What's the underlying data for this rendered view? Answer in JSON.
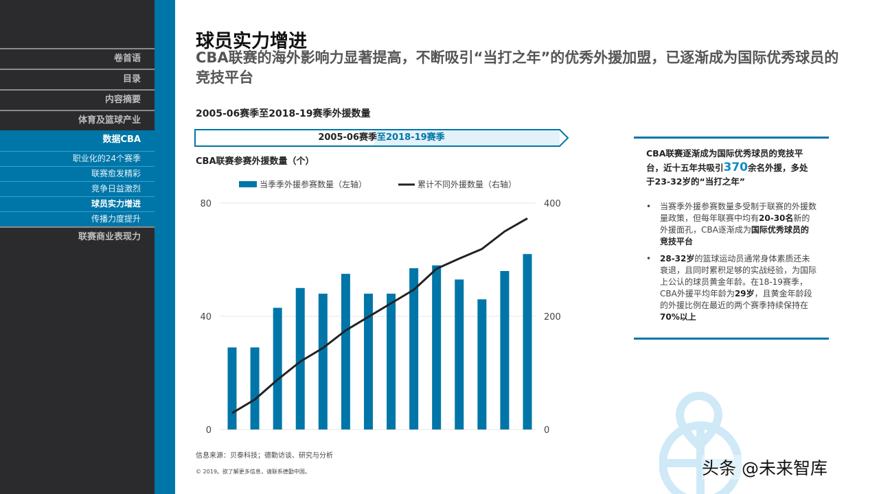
{
  "sidebar": {
    "items": [
      {
        "label": "卷首语",
        "type": "main"
      },
      {
        "label": "目录",
        "type": "main"
      },
      {
        "label": "内容摘要",
        "type": "main"
      },
      {
        "label": "体育及篮球产业",
        "type": "main"
      },
      {
        "label": "数据CBA",
        "type": "active"
      },
      {
        "label": "职业化的24个赛季",
        "type": "sub"
      },
      {
        "label": "联赛愈发精彩",
        "type": "sub"
      },
      {
        "label": "竞争日益激烈",
        "type": "sub"
      },
      {
        "label": "球员实力增进",
        "type": "sub",
        "current": true
      },
      {
        "label": "传播力度提升",
        "type": "sub"
      },
      {
        "label": "联赛商业表现力",
        "type": "main"
      }
    ]
  },
  "header": {
    "title": "球员实力增进",
    "subtitle": "CBA联赛的海外影响力显著提高，不断吸引“当打之年”的优秀外援加盟，已逐渐成为国际优秀球员的竞技平台"
  },
  "banner": {
    "start": "2005-06赛季",
    "end": "至2018-19赛季"
  },
  "colors": {
    "accent": "#0076a8",
    "sidebar": "#2b2b2d",
    "line": "#222222"
  },
  "chart_data": {
    "type": "bar+line",
    "title": "2005-06赛季至2018-19赛季外援数量",
    "ylabel": "CBA联赛参赛外援数量（个）",
    "ylim": [
      0,
      80
    ],
    "y2lim": [
      0,
      400
    ],
    "yticks": [
      "0",
      "40",
      "80"
    ],
    "y2ticks": [
      "0",
      "200",
      "400"
    ],
    "legend_position": "top",
    "grid": true,
    "series": [
      {
        "name": "当季季外援参赛数量（左轴）",
        "type": "bar",
        "axis": "left",
        "values": [
          29,
          29,
          43,
          50,
          48,
          55,
          48,
          48,
          57,
          58,
          53,
          46,
          56,
          62
        ]
      },
      {
        "name": "累计不同外援数量（右轴）",
        "type": "line",
        "axis": "right",
        "values": [
          29,
          53,
          88,
          120,
          144,
          175,
          199,
          223,
          247,
          284,
          302,
          319,
          350,
          373
        ]
      }
    ]
  },
  "panel": {
    "head_a": "CBA联赛逐渐成为国际优秀球员的竞技平台，近十五年共吸引",
    "head_num": "370",
    "head_b": "余名外援，多处于23-32岁的“当打之年”",
    "b1": [
      {
        "t": "当赛季外援参赛数量多受制于联赛的外援数量政策，但每年联赛中均有"
      },
      {
        "t": "20-30名",
        "b": true
      },
      {
        "t": "新的外援面孔，CBA逐渐成为"
      },
      {
        "t": "国际优秀球员的竞技平台",
        "b": true
      }
    ],
    "b2": [
      {
        "t": "28-32岁",
        "b": true
      },
      {
        "t": "的篮球运动员通常身体素质还未衰退，且同时累积足够的实战经验，为国际上公认的球员黄金年龄。在18-19赛季，CBA外援平均年龄为"
      },
      {
        "t": "29岁",
        "b": true
      },
      {
        "t": "，且黄金年龄段的外援比例在最近的两个赛季持续保持在"
      },
      {
        "t": "70%以上",
        "b": true
      }
    ]
  },
  "footer": {
    "source": "信息来源：贝泰科技；德勤访谈、研究与分析",
    "copyright": "© 2019。欲了解更多信息，请联系德勤中国。"
  },
  "watermark": "头条 @未来智库"
}
